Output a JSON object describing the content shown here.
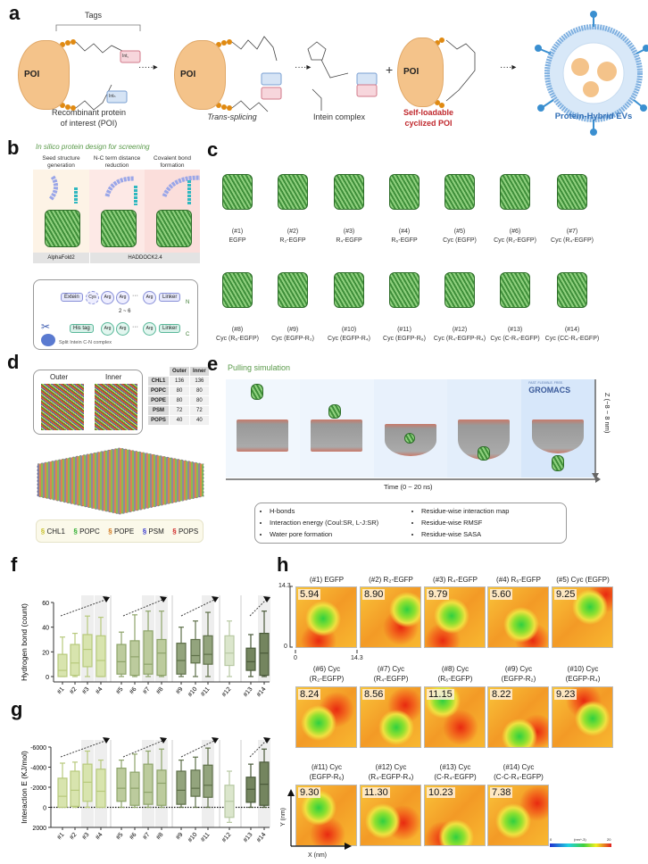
{
  "panel_labels": {
    "a": "a",
    "b": "b",
    "c": "c",
    "d": "d",
    "e": "e",
    "f": "f",
    "g": "g",
    "h": "h"
  },
  "a": {
    "tags": "Tags",
    "poi": "POI",
    "int_c": "Int꜀",
    "int_n": "Intₙ",
    "step1": [
      "Recombinant protein",
      "of interest (POI)"
    ],
    "step2": "Trans-splicing",
    "step3": "Intein complex",
    "plus": "+",
    "step4": [
      "Self-loadable",
      "cyclized POI"
    ],
    "step5": "Protein-Hybrid EVs",
    "colors": {
      "poi": "#f4c38a",
      "red_label": "#c0282d",
      "blue_label": "#2f6db5"
    }
  },
  "b": {
    "title": "In silico protein design for screening",
    "cols": [
      [
        "Seed structure",
        "generation"
      ],
      [
        "N-C term distance",
        "reduction"
      ],
      [
        "Covalent bond",
        "formation"
      ]
    ],
    "tools": [
      "AlphaFold2",
      "HADDOCK2.4"
    ],
    "top_row": [
      "Extein",
      "Cys",
      "Arg",
      "Arg",
      "···",
      "Arg",
      "Linker"
    ],
    "bottom_row": [
      "His tag",
      "Arg",
      "Arg",
      "···",
      "Arg",
      "Linker"
    ],
    "range": "2 ~ 6",
    "n": "N",
    "c": "C",
    "complex": "Split Intein C-N complex"
  },
  "c": {
    "items": [
      {
        "id": "(#1)",
        "name": "EGFP"
      },
      {
        "id": "(#2)",
        "name": "R₂-EGFP"
      },
      {
        "id": "(#3)",
        "name": "R₄-EGFP"
      },
      {
        "id": "(#4)",
        "name": "R₆-EGFP"
      },
      {
        "id": "(#5)",
        "name": "Cyc (EGFP)"
      },
      {
        "id": "(#6)",
        "name": "Cyc (R₂-EGFP)"
      },
      {
        "id": "(#7)",
        "name": "Cyc (R₄-EGFP)"
      },
      {
        "id": "(#8)",
        "name": "Cyc (R₆-EGFP)"
      },
      {
        "id": "(#9)",
        "name": "Cyc (EGFP-R₂)"
      },
      {
        "id": "(#10)",
        "name": "Cyc (EGFP-R₄)"
      },
      {
        "id": "(#11)",
        "name": "Cyc (EGFP-R₆)"
      },
      {
        "id": "(#12)",
        "name": "Cyc (R₄-EGFP-R₄)"
      },
      {
        "id": "(#13)",
        "name": "Cyc (C-R₄-EGFP)"
      },
      {
        "id": "(#14)",
        "name": "Cyc (CC-R₄-EGFP)"
      }
    ]
  },
  "d": {
    "outer": "Outer",
    "inner": "Inner",
    "table": {
      "headers": [
        "",
        "Outer",
        "Inner"
      ],
      "rows": [
        [
          "CHL1",
          "136",
          "136"
        ],
        [
          "POPC",
          "80",
          "80"
        ],
        [
          "POPE",
          "80",
          "80"
        ],
        [
          "PSM",
          "72",
          "72"
        ],
        [
          "POPS",
          "40",
          "40"
        ]
      ]
    },
    "legend": [
      "CHL1",
      "POPC",
      "POPE",
      "PSM",
      "POPS"
    ],
    "legend_colors": [
      "#c8c02a",
      "#2fae2f",
      "#d2781e",
      "#3a3ad0",
      "#d02a2a"
    ]
  },
  "e": {
    "title": "Pulling simulation",
    "gromacs_tag": "FAST. FLEXIBLE. FREE.",
    "gromacs": "GROMACS",
    "z_label": "Z (−8 ~ 8 nm)",
    "time_label": "Time (0 ~ 20 ns)",
    "list_left": [
      "H-bonds",
      "Interaction energy (Coul:SR, L-J:SR)",
      "Water pore formation"
    ],
    "list_right": [
      "Residue-wise interaction map",
      "Residue-wise RMSF",
      "Residue-wise SASA"
    ]
  },
  "chart_data": [
    {
      "type": "box",
      "panel": "f",
      "ylabel": "Hydrogen bond (count)",
      "ylim": [
        0,
        60
      ],
      "yticks": [
        "0",
        "20",
        "40",
        "60"
      ],
      "categories": [
        "#1",
        "#2",
        "#3",
        "#4",
        "#5",
        "#6",
        "#7",
        "#8",
        "#9",
        "#10",
        "#11",
        "#12",
        "#13",
        "#14"
      ],
      "boxes": [
        [
          0,
          0,
          5,
          18,
          32
        ],
        [
          0,
          1,
          11,
          26,
          35
        ],
        [
          0,
          8,
          22,
          34,
          49
        ],
        [
          0,
          0,
          13,
          33,
          48
        ],
        [
          0,
          2,
          12,
          26,
          36
        ],
        [
          0,
          1,
          16,
          29,
          50
        ],
        [
          0,
          2,
          10,
          37,
          53
        ],
        [
          0,
          1,
          19,
          30,
          53
        ],
        [
          0,
          2,
          13,
          27,
          40
        ],
        [
          0,
          11,
          17,
          30,
          45
        ],
        [
          0,
          10,
          18,
          33,
          52
        ],
        [
          0,
          9,
          19,
          33,
          45
        ],
        [
          0,
          5,
          12,
          23,
          34
        ],
        [
          0,
          1,
          19,
          35,
          53
        ]
      ],
      "box_fields": [
        "min",
        "q1",
        "median",
        "q3",
        "max"
      ],
      "highlighted": [
        "#3",
        "#4",
        "#7",
        "#8",
        "#11",
        "#14"
      ]
    },
    {
      "type": "box",
      "panel": "g",
      "ylabel": "Interaction E (KJ/mol)",
      "ylim": [
        -6000,
        2000
      ],
      "y_inverted": true,
      "yticks": [
        "-6000",
        "-4000",
        "-2000",
        "0",
        "2000"
      ],
      "categories": [
        "#1",
        "#2",
        "#3",
        "#4",
        "#5",
        "#6",
        "#7",
        "#8",
        "#9",
        "#10",
        "#11",
        "#12",
        "#13",
        "#14"
      ],
      "boxes": [
        [
          0,
          0,
          -1100,
          -2900,
          -4400
        ],
        [
          0,
          -100,
          -1700,
          -3600,
          -4500
        ],
        [
          0,
          -600,
          -2500,
          -4300,
          -5600
        ],
        [
          0,
          0,
          -1600,
          -3800,
          -4700
        ],
        [
          0,
          -600,
          -1900,
          -3900,
          -4700
        ],
        [
          0,
          -200,
          -1900,
          -3500,
          -5300
        ],
        [
          0,
          -300,
          -1500,
          -4300,
          -5600
        ],
        [
          0,
          -200,
          -2400,
          -3700,
          -5800
        ],
        [
          0,
          -300,
          -1700,
          -3600,
          -4700
        ],
        [
          0,
          -1100,
          -1900,
          -3700,
          -5000
        ],
        [
          0,
          -1000,
          -2200,
          -4200,
          -5900
        ],
        [
          1500,
          1000,
          -600,
          -2200,
          -3600
        ],
        [
          0,
          -500,
          -1800,
          -3000,
          -4300
        ],
        [
          0,
          -200,
          -2300,
          -4500,
          -5800
        ]
      ],
      "box_fields": [
        "min",
        "q1",
        "median",
        "q3",
        "max"
      ],
      "highlighted": [
        "#3",
        "#4",
        "#7",
        "#8",
        "#11",
        "#14"
      ]
    },
    {
      "type": "heatmap",
      "panel": "h",
      "xlabel": "X (nm)",
      "ylabel": "Y (nm)",
      "xticks": [
        "0",
        "14.3"
      ],
      "yticks": [
        "0",
        "14.3"
      ],
      "colorbar": {
        "min": "0",
        "max": "20",
        "unit": "(nm^-3)"
      },
      "tiles": [
        [
          "(#1) EGFP",
          "5.94"
        ],
        [
          "(#2) R₂-EGFP",
          "8.90"
        ],
        [
          "(#3) R₄-EGFP",
          "9.79"
        ],
        [
          "(#4) R₆-EGFP",
          "5.60"
        ],
        [
          "(#5) Cyc (EGFP)",
          "9.25"
        ],
        [
          "(#6) Cyc\n(R₂-EGFP)",
          "8.24"
        ],
        [
          "(#7) Cyc\n(R₄-EGFP)",
          "8.56"
        ],
        [
          "(#8) Cyc\n(R₆-EGFP)",
          "11.15"
        ],
        [
          "(#9) Cyc\n(EGFP-R₂)",
          "8.22"
        ],
        [
          "(#10) Cyc\n(EGFP-R₄)",
          "9.23"
        ],
        [
          "(#11) Cyc\n(EGFP-R₆)",
          "9.30"
        ],
        [
          "(#12) Cyc\n(R₄-EGFP-R₄)",
          "11.30"
        ],
        [
          "(#13) Cyc\n(C-R₄-EGFP)",
          "10.23"
        ],
        [
          "(#14) Cyc\n(C-C-R₄-EGFP)",
          "7.38"
        ]
      ]
    }
  ]
}
